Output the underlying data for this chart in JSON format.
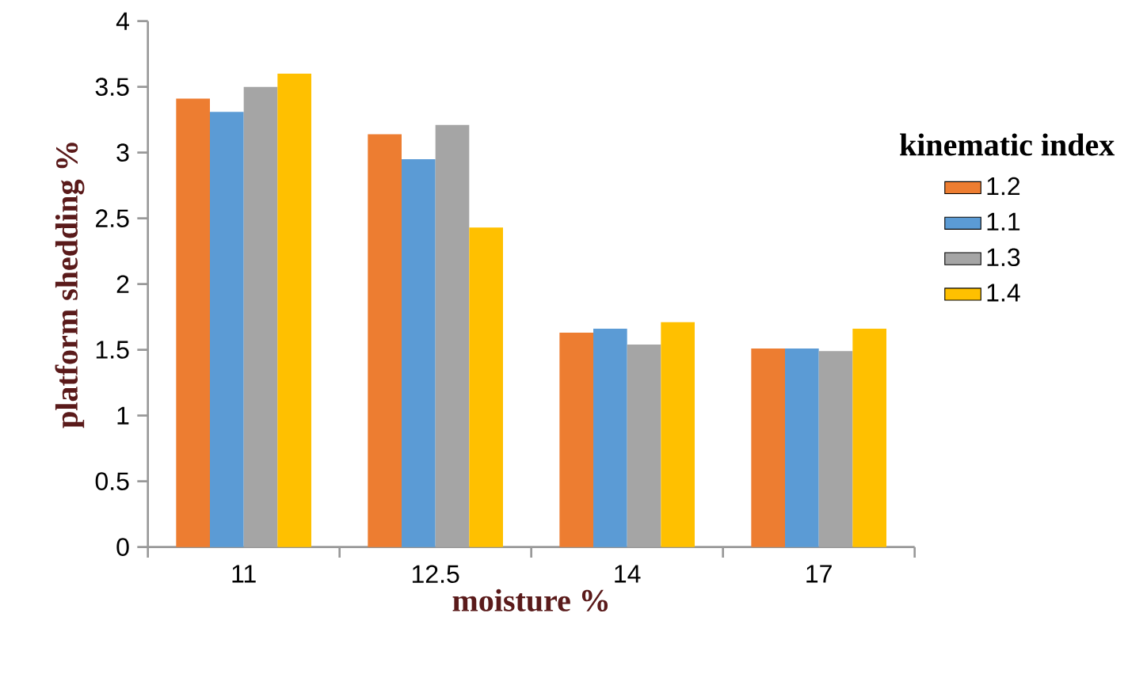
{
  "chart_data": {
    "type": "bar",
    "xlabel": "moisture %",
    "ylabel": "platform shedding %",
    "legend_title": "kinematic index",
    "categories": [
      "11",
      "12.5",
      "14",
      "17"
    ],
    "series": [
      {
        "name": "1.2",
        "color": "#ed7d31",
        "values": [
          3.41,
          3.14,
          1.63,
          1.51
        ]
      },
      {
        "name": "1.1",
        "color": "#5b9bd5",
        "values": [
          3.31,
          2.95,
          1.66,
          1.51
        ]
      },
      {
        "name": "1.3",
        "color": "#a5a5a5",
        "values": [
          3.5,
          3.21,
          1.54,
          1.49
        ]
      },
      {
        "name": "1.4",
        "color": "#ffc000",
        "values": [
          3.6,
          2.43,
          1.71,
          1.66
        ]
      }
    ],
    "ylim": [
      0,
      4
    ],
    "yticks": [
      0,
      0.5,
      1,
      1.5,
      2,
      2.5,
      3,
      3.5,
      4
    ],
    "grid": false,
    "legend": "right"
  }
}
